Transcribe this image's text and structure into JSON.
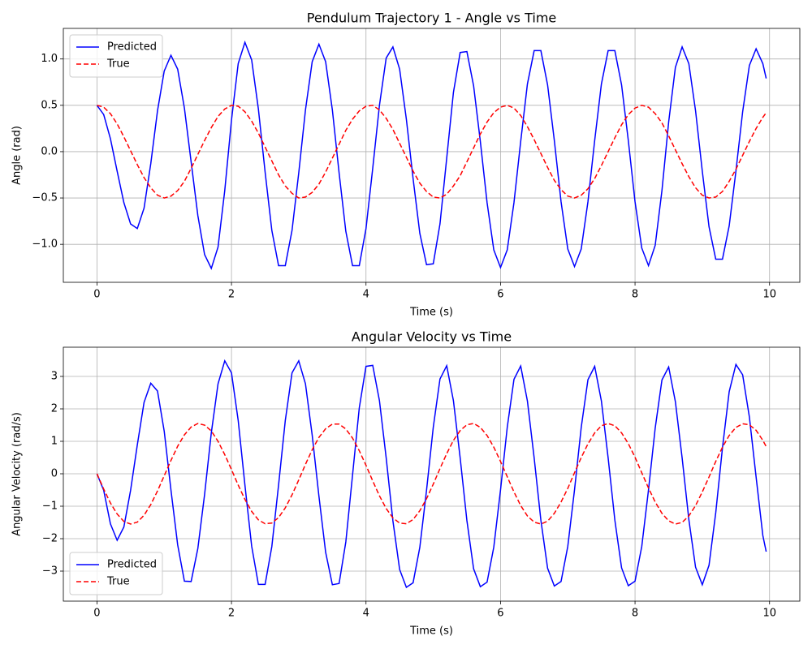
{
  "chart_data": [
    {
      "type": "line",
      "title": "Pendulum Trajectory 1 - Angle vs Time",
      "xlabel": "Time (s)",
      "ylabel": "Angle (rad)",
      "x": [
        0,
        0.1,
        0.2,
        0.3,
        0.4,
        0.5,
        0.6,
        0.7,
        0.8,
        0.9,
        1.0,
        1.1,
        1.2,
        1.3,
        1.4,
        1.5,
        1.6,
        1.7,
        1.8,
        1.9,
        2.0,
        2.1,
        2.2,
        2.3,
        2.4,
        2.5,
        2.6,
        2.7,
        2.8,
        2.9,
        3.0,
        3.1,
        3.2,
        3.3,
        3.4,
        3.5,
        3.6,
        3.7,
        3.8,
        3.9,
        4.0,
        4.1,
        4.2,
        4.3,
        4.4,
        4.5,
        4.6,
        4.7,
        4.8,
        4.9,
        5.0,
        5.1,
        5.2,
        5.3,
        5.4,
        5.5,
        5.6,
        5.7,
        5.8,
        5.9,
        6.0,
        6.1,
        6.2,
        6.3,
        6.4,
        6.5,
        6.6,
        6.7,
        6.8,
        6.9,
        7.0,
        7.1,
        7.2,
        7.3,
        7.4,
        7.5,
        7.6,
        7.7,
        7.8,
        7.9,
        8.0,
        8.1,
        8.2,
        8.3,
        8.4,
        8.5,
        8.6,
        8.7,
        8.8,
        8.9,
        9.0,
        9.1,
        9.2,
        9.3,
        9.4,
        9.5,
        9.6,
        9.7,
        9.8,
        9.9,
        9.95
      ],
      "series": [
        {
          "name": "Predicted",
          "color": "#0000ff",
          "linestyle": "solid",
          "values": [
            0.5,
            0.4,
            0.14,
            -0.21,
            -0.55,
            -0.78,
            -0.83,
            -0.61,
            -0.13,
            0.44,
            0.87,
            1.04,
            0.89,
            0.47,
            -0.11,
            -0.69,
            -1.11,
            -1.26,
            -1.03,
            -0.42,
            0.34,
            0.95,
            1.18,
            0.99,
            0.46,
            -0.22,
            -0.85,
            -1.23,
            -1.23,
            -0.85,
            -0.23,
            0.45,
            0.97,
            1.16,
            0.97,
            0.45,
            -0.23,
            -0.86,
            -1.23,
            -1.23,
            -0.83,
            -0.18,
            0.5,
            1.01,
            1.13,
            0.89,
            0.35,
            -0.29,
            -0.88,
            -1.22,
            -1.21,
            -0.78,
            -0.07,
            0.64,
            1.07,
            1.08,
            0.71,
            0.11,
            -0.55,
            -1.06,
            -1.25,
            -1.06,
            -0.55,
            0.11,
            0.73,
            1.09,
            1.09,
            0.72,
            0.12,
            -0.54,
            -1.05,
            -1.24,
            -1.05,
            -0.54,
            0.12,
            0.73,
            1.09,
            1.09,
            0.72,
            0.12,
            -0.54,
            -1.04,
            -1.23,
            -1.01,
            -0.42,
            0.32,
            0.91,
            1.13,
            0.95,
            0.44,
            -0.21,
            -0.81,
            -1.16,
            -1.16,
            -0.8,
            -0.21,
            0.43,
            0.93,
            1.11,
            0.95,
            0.79
          ]
        },
        {
          "name": "True",
          "color": "#ff0000",
          "linestyle": "dashed",
          "values": [
            0.5,
            0.48,
            0.41,
            0.3,
            0.16,
            0.01,
            -0.14,
            -0.28,
            -0.39,
            -0.47,
            -0.5,
            -0.48,
            -0.42,
            -0.32,
            -0.18,
            -0.03,
            0.12,
            0.26,
            0.38,
            0.46,
            0.5,
            0.49,
            0.43,
            0.33,
            0.2,
            0.05,
            -0.1,
            -0.25,
            -0.37,
            -0.45,
            -0.5,
            -0.49,
            -0.44,
            -0.35,
            -0.22,
            -0.07,
            0.08,
            0.23,
            0.35,
            0.44,
            0.49,
            0.5,
            0.45,
            0.36,
            0.24,
            0.09,
            -0.06,
            -0.21,
            -0.34,
            -0.43,
            -0.49,
            -0.5,
            -0.46,
            -0.37,
            -0.26,
            -0.11,
            0.04,
            0.19,
            0.32,
            0.42,
            0.48,
            0.5,
            0.47,
            0.39,
            0.27,
            0.13,
            -0.02,
            -0.17,
            -0.31,
            -0.41,
            -0.48,
            -0.5,
            -0.47,
            -0.4,
            -0.29,
            -0.15,
            0.0,
            0.15,
            0.29,
            0.4,
            0.47,
            0.5,
            0.48,
            0.41,
            0.31,
            0.17,
            0.02,
            -0.13,
            -0.27,
            -0.39,
            -0.47,
            -0.5,
            -0.49,
            -0.43,
            -0.32,
            -0.19,
            -0.04,
            0.11,
            0.25,
            0.37,
            0.42
          ]
        }
      ],
      "xlim": [
        -0.5,
        10.45
      ],
      "ylim": [
        -1.41,
        1.33
      ],
      "xticks": [
        0,
        2,
        4,
        6,
        8,
        10
      ],
      "yticks": [
        {
          "value": -1,
          "label": "−1.0"
        },
        {
          "value": -0.5,
          "label": "−0.5"
        },
        {
          "value": 0,
          "label": "0.0"
        },
        {
          "value": 0.5,
          "label": "0.5"
        },
        {
          "value": 1,
          "label": "1.0"
        }
      ],
      "grid": true,
      "legend": "upper left"
    },
    {
      "type": "line",
      "title": "Angular Velocity vs Time",
      "xlabel": "Time (s)",
      "ylabel": "Angular Velocity (rad/s)",
      "x": [
        0,
        0.1,
        0.2,
        0.3,
        0.4,
        0.5,
        0.6,
        0.7,
        0.8,
        0.9,
        1.0,
        1.1,
        1.2,
        1.3,
        1.4,
        1.5,
        1.6,
        1.7,
        1.8,
        1.9,
        2.0,
        2.1,
        2.2,
        2.3,
        2.4,
        2.5,
        2.6,
        2.7,
        2.8,
        2.9,
        3.0,
        3.1,
        3.2,
        3.3,
        3.4,
        3.5,
        3.6,
        3.7,
        3.8,
        3.9,
        4.0,
        4.1,
        4.2,
        4.3,
        4.4,
        4.5,
        4.6,
        4.7,
        4.8,
        4.9,
        5.0,
        5.1,
        5.2,
        5.3,
        5.4,
        5.5,
        5.6,
        5.7,
        5.8,
        5.9,
        6.0,
        6.1,
        6.2,
        6.3,
        6.4,
        6.5,
        6.6,
        6.7,
        6.8,
        6.9,
        7.0,
        7.1,
        7.2,
        7.3,
        7.4,
        7.5,
        7.6,
        7.7,
        7.8,
        7.9,
        8.0,
        8.1,
        8.2,
        8.3,
        8.4,
        8.5,
        8.6,
        8.7,
        8.8,
        8.9,
        9.0,
        9.1,
        9.2,
        9.3,
        9.4,
        9.5,
        9.6,
        9.7,
        9.8,
        9.9,
        9.95
      ],
      "series": [
        {
          "name": "Predicted",
          "color": "#0000ff",
          "linestyle": "solid",
          "values": [
            0,
            -0.51,
            -1.54,
            -2.05,
            -1.64,
            -0.51,
            0.89,
            2.2,
            2.79,
            2.55,
            1.31,
            -0.5,
            -2.19,
            -3.31,
            -3.32,
            -2.3,
            -0.64,
            1.26,
            2.77,
            3.48,
            3.11,
            1.64,
            -0.35,
            -2.23,
            -3.41,
            -3.41,
            -2.24,
            -0.35,
            1.64,
            3.11,
            3.48,
            2.77,
            1.19,
            -0.69,
            -2.42,
            -3.42,
            -3.38,
            -2.1,
            -0.04,
            2.03,
            3.31,
            3.34,
            2.25,
            0.49,
            -1.45,
            -2.95,
            -3.5,
            -3.36,
            -2.27,
            -0.51,
            1.43,
            2.92,
            3.33,
            2.25,
            0.49,
            -1.44,
            -2.93,
            -3.48,
            -3.34,
            -2.26,
            -0.5,
            1.43,
            2.91,
            3.32,
            2.24,
            0.49,
            -1.43,
            -2.91,
            -3.46,
            -3.32,
            -2.24,
            -0.5,
            1.43,
            2.9,
            3.31,
            2.24,
            0.49,
            -1.43,
            -2.9,
            -3.45,
            -3.31,
            -2.24,
            -0.5,
            1.41,
            2.89,
            3.29,
            2.22,
            0.49,
            -1.41,
            -2.88,
            -3.42,
            -2.82,
            -1.2,
            0.8,
            2.53,
            3.37,
            3.05,
            1.75,
            -0.1,
            -1.9,
            -2.4
          ]
        },
        {
          "name": "True",
          "color": "#ff0000",
          "linestyle": "dashed",
          "values": [
            0,
            -0.47,
            -0.9,
            -1.24,
            -1.47,
            -1.55,
            -1.49,
            -1.28,
            -0.95,
            -0.53,
            -0.06,
            0.41,
            0.85,
            1.2,
            1.44,
            1.55,
            1.5,
            1.32,
            1.0,
            0.59,
            0.13,
            -0.35,
            -0.79,
            -1.16,
            -1.42,
            -1.54,
            -1.52,
            -1.35,
            -1.05,
            -0.65,
            -0.19,
            0.29,
            0.74,
            1.12,
            1.39,
            1.53,
            1.53,
            1.38,
            1.1,
            0.71,
            0.26,
            -0.22,
            -0.68,
            -1.07,
            -1.36,
            -1.52,
            -1.54,
            -1.41,
            -1.14,
            -0.77,
            -0.32,
            0.16,
            0.62,
            1.03,
            1.33,
            1.51,
            1.55,
            1.43,
            1.18,
            0.82,
            0.38,
            -0.09,
            -0.56,
            -0.98,
            -1.3,
            -1.49,
            -1.55,
            -1.46,
            -1.22,
            -0.87,
            -0.45,
            0.03,
            0.5,
            0.92,
            1.26,
            1.48,
            1.55,
            1.48,
            1.26,
            0.93,
            0.51,
            0.03,
            -0.44,
            -0.87,
            -1.22,
            -1.45,
            -1.55,
            -1.5,
            -1.3,
            -0.98,
            -0.56,
            -0.1,
            0.38,
            0.82,
            1.18,
            1.43,
            1.54,
            1.51,
            1.34,
            1.03,
            0.84
          ]
        }
      ],
      "xlim": [
        -0.5,
        10.45
      ],
      "ylim": [
        -3.925,
        3.9
      ],
      "xticks": [
        0,
        2,
        4,
        6,
        8,
        10
      ],
      "yticks": [
        {
          "value": -3,
          "label": "−3"
        },
        {
          "value": -2,
          "label": "−2"
        },
        {
          "value": -1,
          "label": "−1"
        },
        0,
        1,
        2,
        3
      ],
      "grid": true,
      "legend": "lower left"
    }
  ]
}
